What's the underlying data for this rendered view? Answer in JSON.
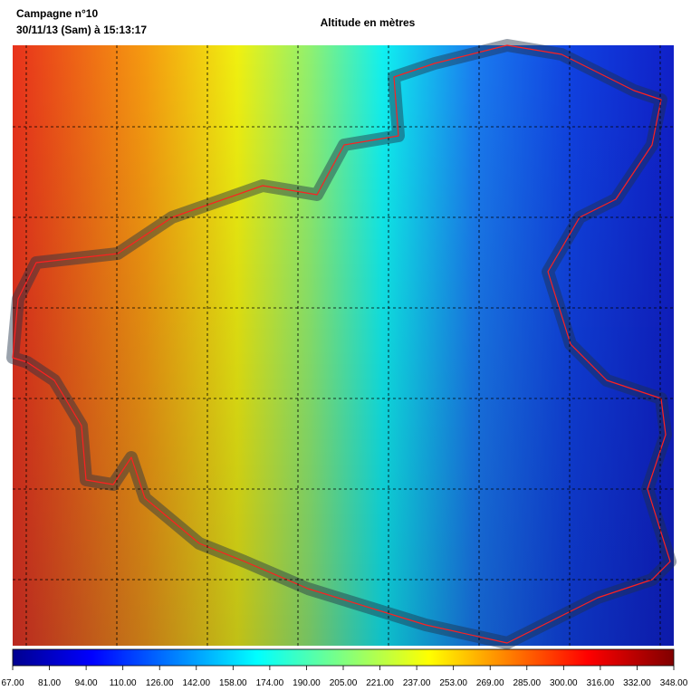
{
  "header": {
    "title": "Campagne n°10",
    "datetime": "30/11/13 (Sam) à 15:13:17",
    "map_title": "Altitude en mètres"
  },
  "colorbar": {
    "ticks": [
      "67.00",
      "81.00",
      "94.00",
      "110.00",
      "126.00",
      "142.00",
      "158.00",
      "174.00",
      "190.00",
      "205.00",
      "221.00",
      "237.00",
      "253.00",
      "269.00",
      "285.00",
      "300.00",
      "316.00",
      "332.00",
      "348.00"
    ]
  }
}
